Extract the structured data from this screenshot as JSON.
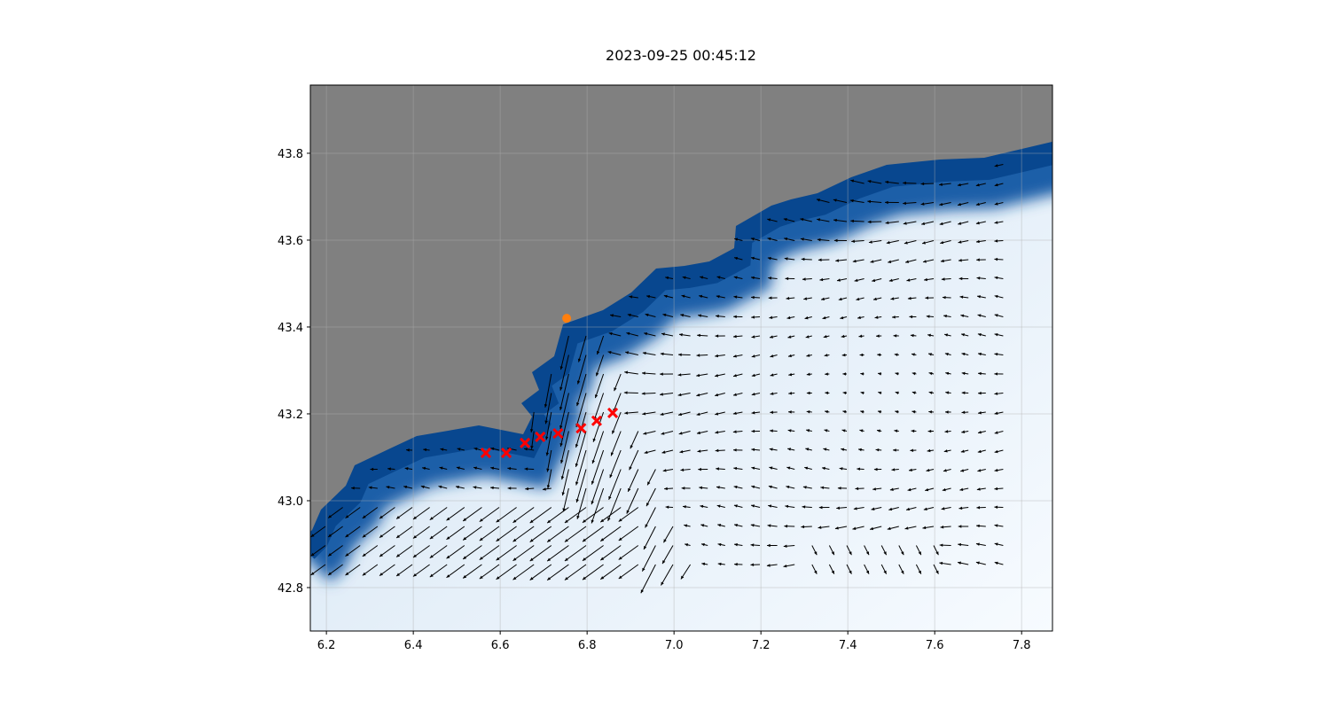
{
  "chart_data": {
    "type": "map-quiver",
    "title": "2023-09-25 00:45:12",
    "xlabel": "",
    "ylabel": "",
    "xlim": [
      6.163,
      7.871
    ],
    "ylim": [
      42.7,
      43.957
    ],
    "xticks": [
      "6.2",
      "6.4",
      "6.6",
      "6.8",
      "7.0",
      "7.2",
      "7.4",
      "7.6",
      "7.8"
    ],
    "yticks": [
      "42.8",
      "43.0",
      "43.2",
      "43.4",
      "43.6",
      "43.8"
    ],
    "grid": true,
    "land_color": "#808080",
    "colormap": "Blues",
    "series": [
      {
        "marker": "x",
        "color": "#ff0000",
        "points": [
          [
            6.567,
            43.11
          ],
          [
            6.614,
            43.11
          ],
          [
            6.657,
            43.133
          ],
          [
            6.692,
            43.147
          ],
          [
            6.733,
            43.155
          ],
          [
            6.786,
            43.167
          ],
          [
            6.822,
            43.184
          ],
          [
            6.859,
            43.202
          ]
        ]
      },
      {
        "marker": "o",
        "color": "#ff7f0e",
        "points": [
          [
            6.753,
            43.42
          ]
        ]
      }
    ],
    "quiver": {
      "color": "#000000",
      "dominant_direction": "west / south-west"
    }
  }
}
